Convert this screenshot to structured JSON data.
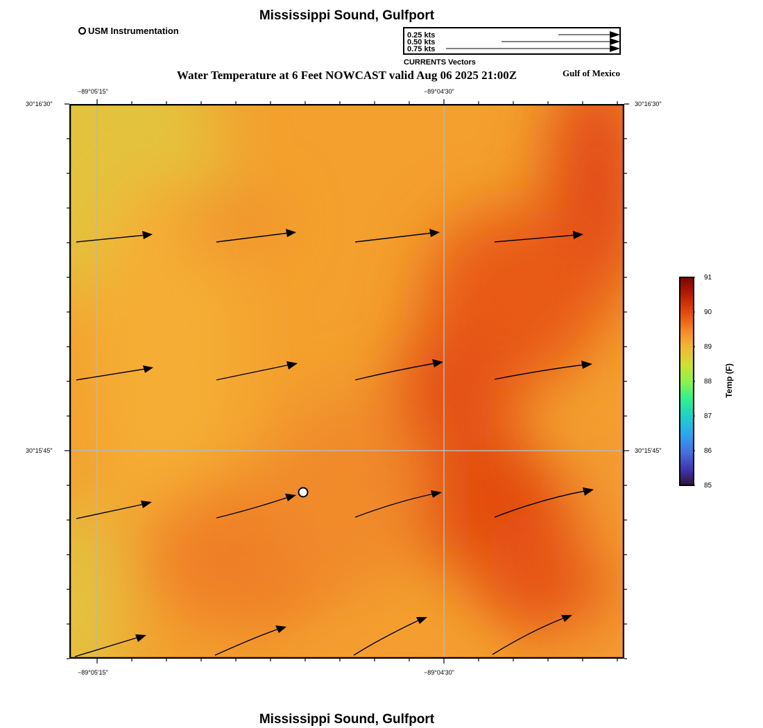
{
  "title_top": "Mississippi Sound, Gulfport",
  "title_bottom": "Mississippi Sound, Gulfport",
  "subtitle": "Water Temperature at 6 Feet NOWCAST valid Aug 06 2025 21:00Z",
  "region_label": "Gulf of Mexico",
  "station_legend": "USM Instrumentation",
  "vector_legend": {
    "caption": "CURRENTS Vectors",
    "entries": [
      {
        "label": "0.25 kts",
        "speed": 0.25
      },
      {
        "label": "0.50 kts",
        "speed": 0.5
      },
      {
        "label": "0.75 kts",
        "speed": 0.75
      }
    ]
  },
  "axes": {
    "top_lon_labels": [
      "−89°05'15\"",
      "−89°04'30\""
    ],
    "bottom_lon_labels": [
      "−89°05'15\"",
      "−89°04'30\""
    ],
    "left_lat_labels": [
      "30°16'30\"",
      "30°15'45\""
    ],
    "right_lat_labels": [
      "30°16'30\"",
      "30°15'45\""
    ]
  },
  "colorbar": {
    "title": "Temp (F)",
    "ticks": [
      "91",
      "90",
      "89",
      "88",
      "87",
      "86",
      "85"
    ],
    "min": 85,
    "max": 91
  },
  "colors": {
    "background": "#ffffff",
    "grid": "#b8b8b8",
    "temp_low": "#e0c640",
    "temp_mid": "#f4a02e",
    "temp_high": "#e04410"
  }
}
